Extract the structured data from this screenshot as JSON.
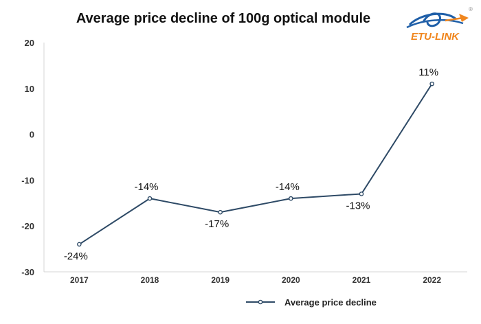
{
  "logo": {
    "text": "ETU-LINK",
    "registered_mark": "®"
  },
  "chart_data": {
    "type": "line",
    "title": "Average price decline of 100g optical module",
    "xlabel": "",
    "ylabel": "",
    "categories": [
      "2017",
      "2018",
      "2019",
      "2020",
      "2021",
      "2022"
    ],
    "series": [
      {
        "name": "Average price decline",
        "values": [
          -24,
          -14,
          -17,
          -14,
          -13,
          11
        ],
        "data_labels": [
          "-24%",
          "-14%",
          "-17%",
          "-14%",
          "-13%",
          "11%"
        ],
        "color": "#2e4a66"
      }
    ],
    "ylim": [
      -30,
      20
    ],
    "yticks": [
      20,
      10,
      0,
      -10,
      -20,
      -30
    ],
    "grid": false,
    "legend": "bottom-right",
    "colors": {
      "axis_text": "#333333",
      "axis_line": "#d6d6d6",
      "logo_blue": "#1f5fa8",
      "logo_orange": "#f0861e"
    }
  }
}
